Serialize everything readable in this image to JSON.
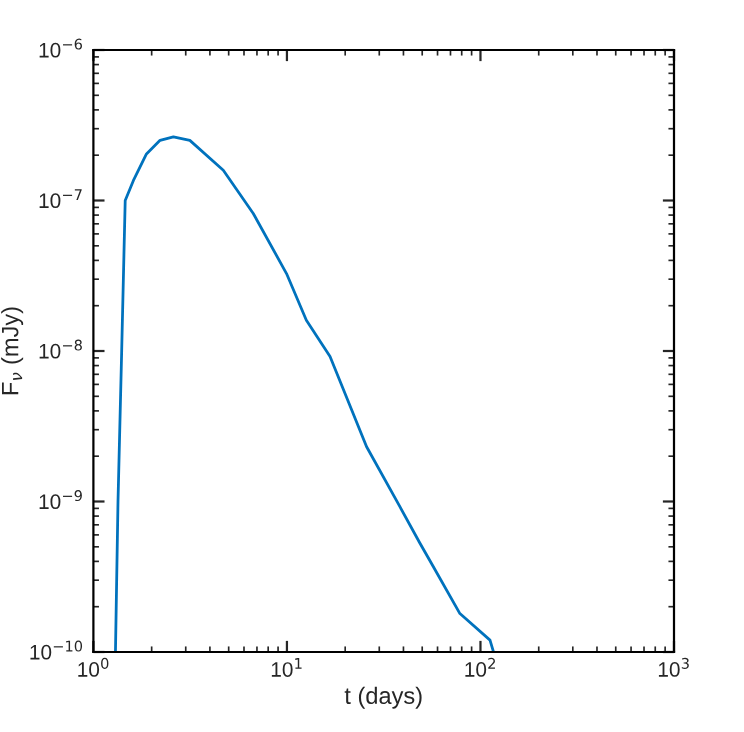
{
  "chart_data": {
    "type": "line",
    "xlabel": "t (days)",
    "ylabel": "F$_{ν}$ (mJy)",
    "log": "xy",
    "xlim": [
      1,
      1000
    ],
    "ylim": [
      1e-10,
      1e-06
    ],
    "xticks": [
      {
        "value": 1,
        "label": "10$^{0}$"
      },
      {
        "value": 10,
        "label": "10$^{1}$"
      },
      {
        "value": 100,
        "label": "10$^{2}$"
      },
      {
        "value": 1000,
        "label": "10$^{3}$"
      }
    ],
    "yticks": [
      {
        "value": 1e-10,
        "label": "10$^{−10}$"
      },
      {
        "value": 1e-09,
        "label": "10$^{−9}$"
      },
      {
        "value": 1e-08,
        "label": "10$^{−8}$"
      },
      {
        "value": 1e-07,
        "label": "10$^{−7}$"
      },
      {
        "value": 1e-06,
        "label": "10$^{−6}$"
      }
    ],
    "grid": false,
    "legend": false,
    "marker": "none",
    "line_style": "solid",
    "series": [
      {
        "color": "#0072bd",
        "x": [
          1.3,
          1.34,
          1.4,
          1.46,
          1.61,
          1.88,
          2.21,
          2.59,
          3.15,
          4.69,
          6.7,
          9.95,
          12.6,
          16.7,
          25.8,
          38.4,
          48.6,
          57.0,
          78.3,
          112,
          116
        ],
        "values": [
          1e-10,
          1e-09,
          1e-08,
          1e-07,
          1.36e-07,
          2.04e-07,
          2.51e-07,
          2.65e-07,
          2.51e-07,
          1.59e-07,
          8.2e-08,
          3.27e-08,
          1.6e-08,
          9.2e-09,
          2.31e-09,
          9.2e-10,
          5.3e-10,
          3.7e-10,
          1.8e-10,
          1.2e-10,
          1.03e-10
        ]
      }
    ]
  }
}
